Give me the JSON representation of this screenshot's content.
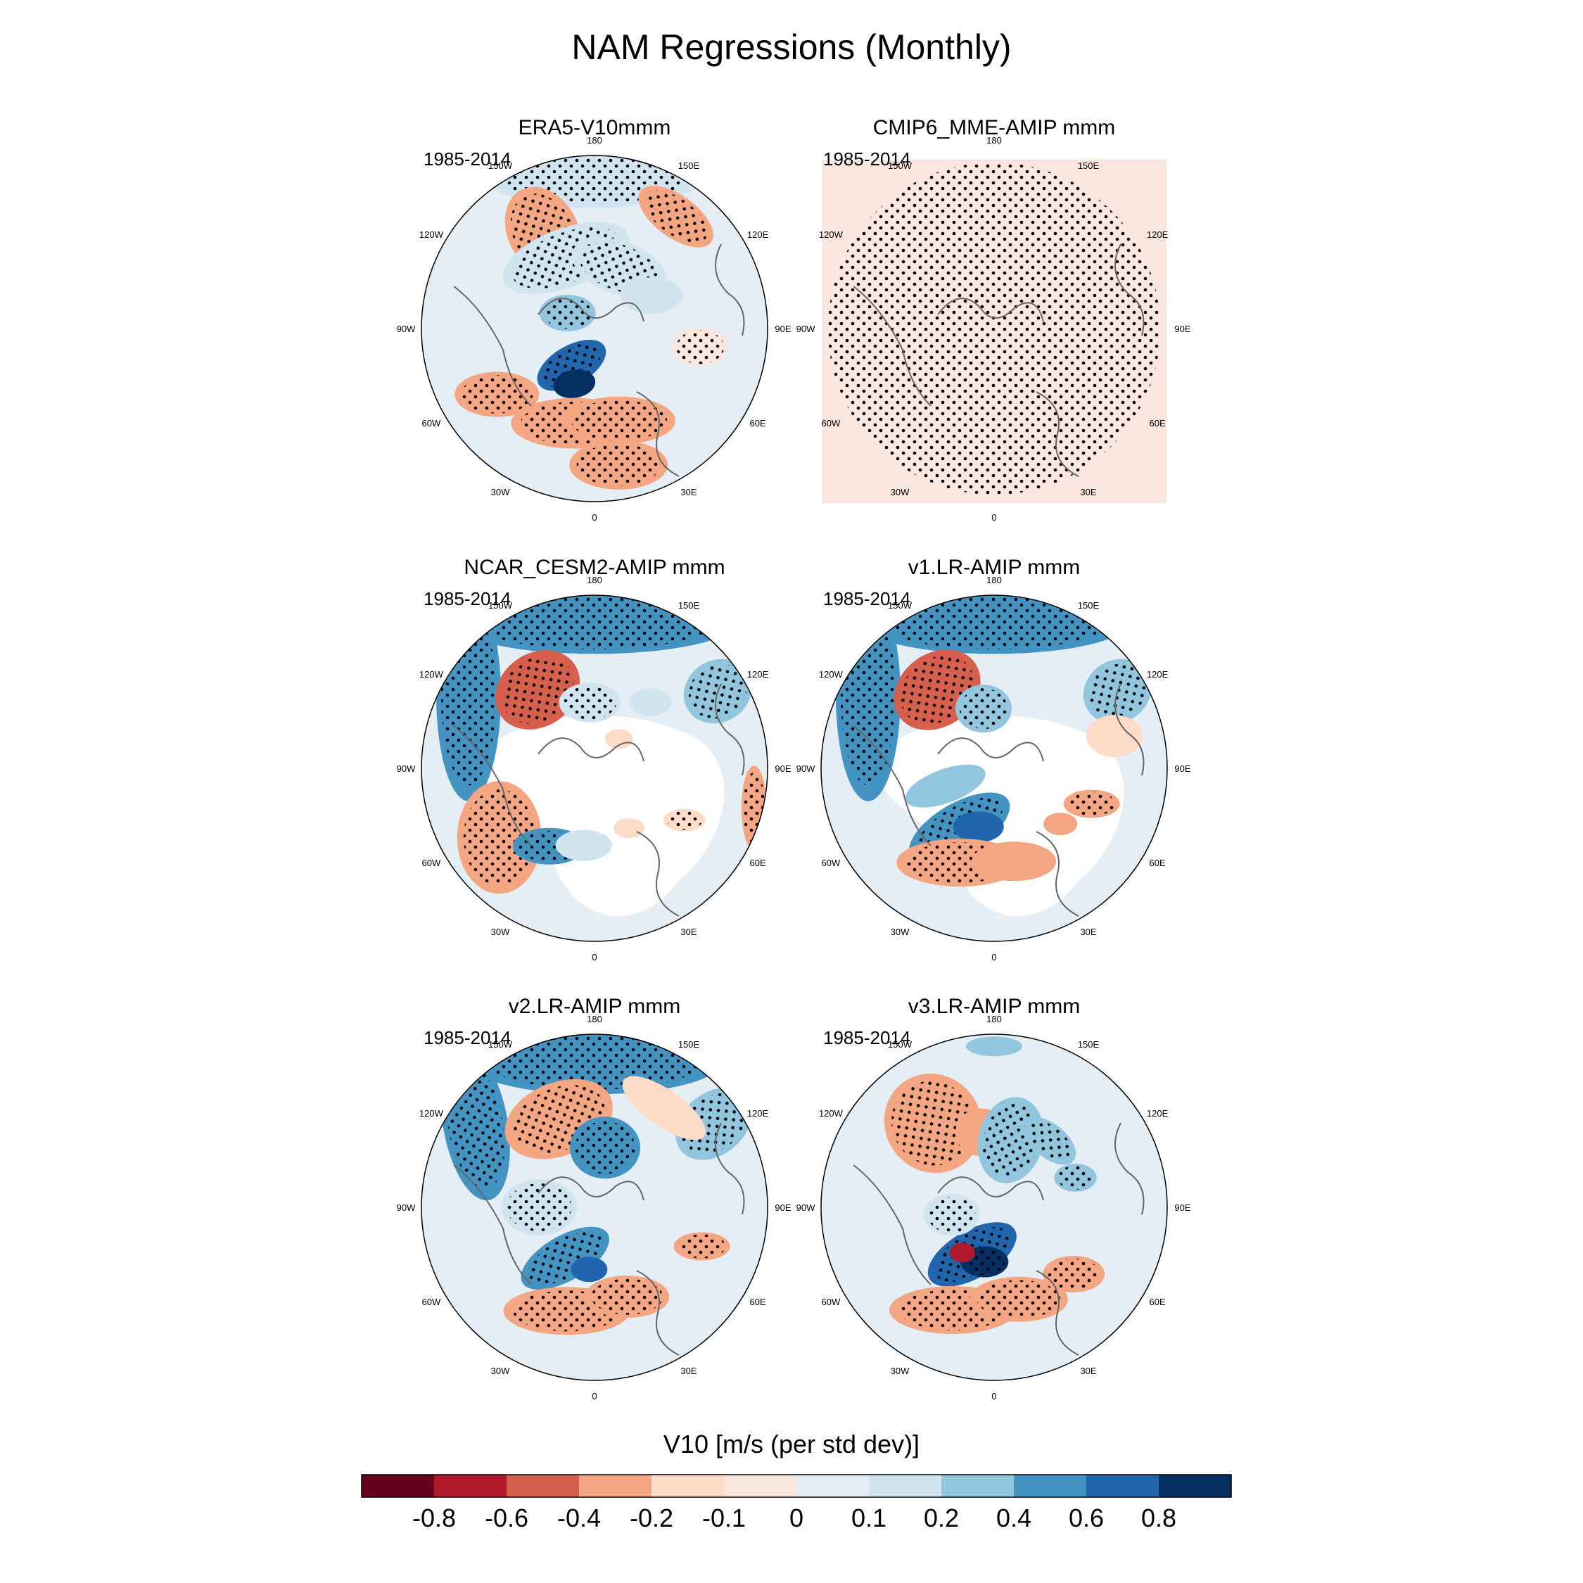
{
  "chart_data": {
    "type": "polar-stereographic-map-panels",
    "title": "NAM Regressions (Monthly)",
    "period": "1985-2014",
    "longitude_labels": [
      "180",
      "150E",
      "120E",
      "90E",
      "60E",
      "30E",
      "0",
      "30W",
      "60W",
      "90W",
      "120W",
      "150W"
    ],
    "panels": [
      {
        "title": "ERA5-V10mmm",
        "pattern": "era5"
      },
      {
        "title": "CMIP6_MME-AMIP  mmm",
        "pattern": "mme"
      },
      {
        "title": "NCAR_CESM2-AMIP  mmm",
        "pattern": "cesm2"
      },
      {
        "title": "v1.LR-AMIP  mmm",
        "pattern": "v1"
      },
      {
        "title": "v2.LR-AMIP  mmm",
        "pattern": "v2"
      },
      {
        "title": "v3.LR-AMIP  mmm",
        "pattern": "v3"
      }
    ],
    "colorbar": {
      "label": "V10 [m/s (per std dev)]",
      "tick_labels": [
        "-0.8",
        "-0.6",
        "-0.4",
        "-0.2",
        "-0.1",
        "0",
        "0.1",
        "0.2",
        "0.4",
        "0.6",
        "0.8"
      ],
      "colors": [
        "#67001f",
        "#b2182b",
        "#d6604d",
        "#f4a582",
        "#fddbc7",
        "#f9e6de",
        "#e5eef4",
        "#d1e5f0",
        "#92c5de",
        "#4393c3",
        "#2166ac",
        "#053061"
      ]
    }
  }
}
